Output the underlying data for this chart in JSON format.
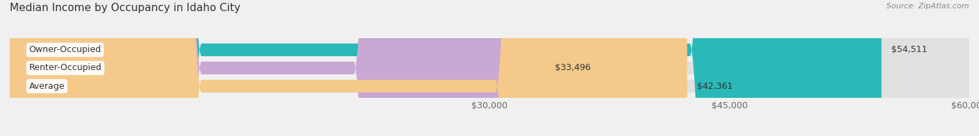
{
  "title": "Median Income by Occupancy in Idaho City",
  "source": "Source: ZipAtlas.com",
  "categories": [
    "Owner-Occupied",
    "Renter-Occupied",
    "Average"
  ],
  "values": [
    54511,
    33496,
    42361
  ],
  "labels": [
    "$54,511",
    "$33,496",
    "$42,361"
  ],
  "bar_colors": [
    "#2ab8b8",
    "#c9a8d4",
    "#f5c98a"
  ],
  "xmin": 0,
  "xmax": 60000,
  "xticks": [
    30000,
    45000,
    60000
  ],
  "xtick_labels": [
    "$30,000",
    "$45,000",
    "$60,000"
  ],
  "background_color": "#f0f0f0",
  "bar_background_color": "#e0e0e0",
  "title_fontsize": 11,
  "label_fontsize": 9,
  "tick_fontsize": 9,
  "figsize": [
    14.06,
    1.96
  ],
  "dpi": 100
}
